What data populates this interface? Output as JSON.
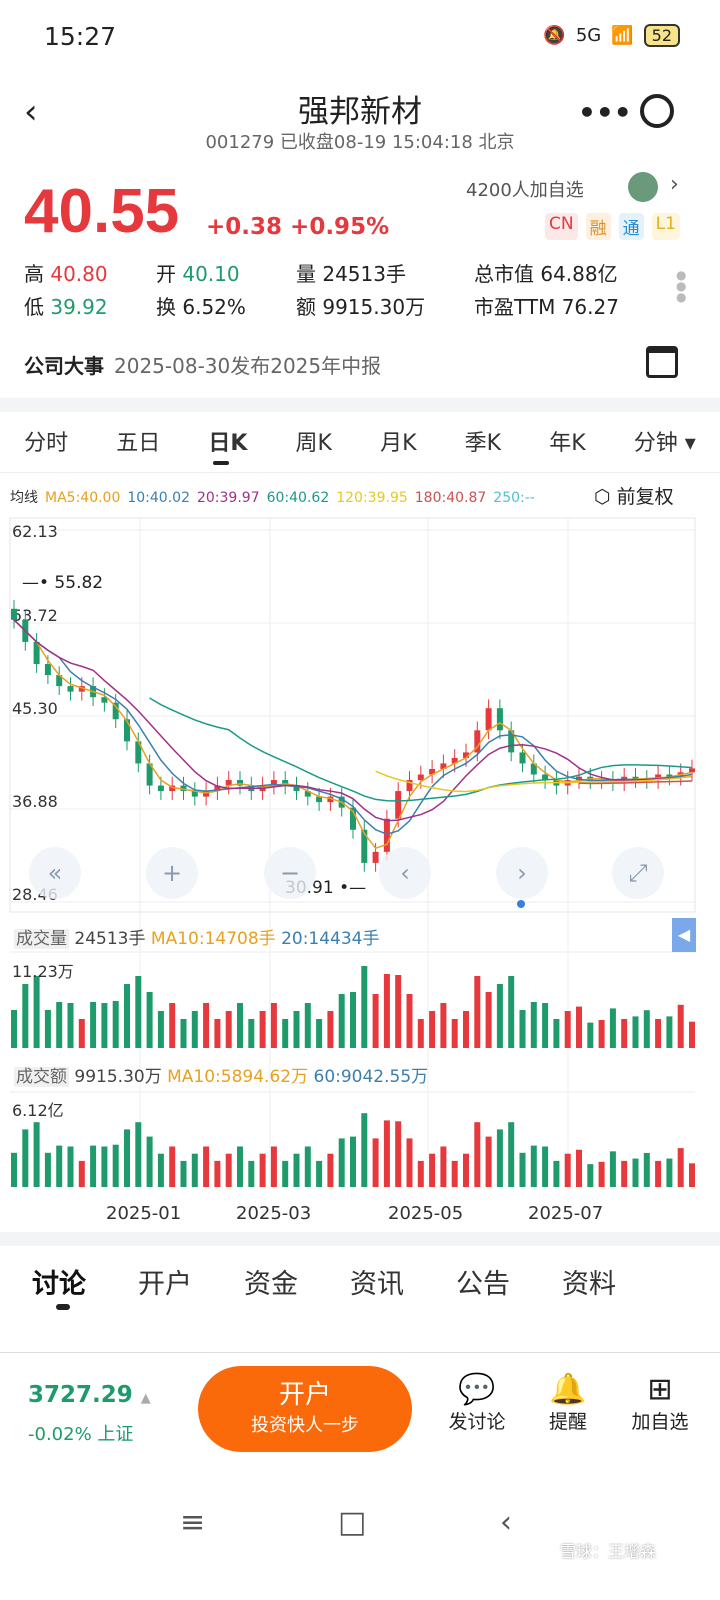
{
  "status": {
    "time": "15:27",
    "network": "5G",
    "battery": "52"
  },
  "header": {
    "title": "强邦新材",
    "subtitle": "001279 已收盘08-19 15:04:18 北京"
  },
  "quote": {
    "price": "40.55",
    "change": "+0.38",
    "change_pct": "+0.95%",
    "watchers": "4200人加自选",
    "badges": [
      "CN",
      "融",
      "通",
      "L1"
    ],
    "stats": [
      {
        "label": "高",
        "value": "40.80",
        "color": "red"
      },
      {
        "label": "开",
        "value": "40.10",
        "color": "green"
      },
      {
        "label": "量",
        "value": "24513手"
      },
      {
        "label": "总市值",
        "value": "64.88亿"
      },
      {
        "label": "低",
        "value": "39.92",
        "color": "green"
      },
      {
        "label": "换",
        "value": "6.52%"
      },
      {
        "label": "额",
        "value": "9915.30万"
      },
      {
        "label": "市盈TTM",
        "value": "76.27"
      }
    ]
  },
  "news": {
    "label": "公司大事",
    "text": "2025-08-30发布2025年中报"
  },
  "period_tabs": [
    "分时",
    "五日",
    "日K",
    "周K",
    "月K",
    "季K",
    "年K",
    "分钟 ▾"
  ],
  "active_period": "日K",
  "ma_legend": {
    "label": "均线",
    "items": [
      {
        "t": "MA5:40.00",
        "c": "#e8a020"
      },
      {
        "t": "10:40.02",
        "c": "#3a7fb0"
      },
      {
        "t": "20:39.97",
        "c": "#a0308a"
      },
      {
        "t": "60:40.62",
        "c": "#1a9a8a"
      },
      {
        "t": "120:39.95",
        "c": "#e8c820"
      },
      {
        "t": "180:40.87",
        "c": "#d05050"
      },
      {
        "t": "250:--",
        "c": "#50c0d0"
      }
    ],
    "adjust": "前复权"
  },
  "chart_data": {
    "type": "candlestick",
    "y_ticks": [
      "62.13",
      "53.72",
      "45.30",
      "36.88",
      "28.46"
    ],
    "ylim": [
      28.46,
      62.13
    ],
    "max_label": "55.82",
    "min_label": "30.91",
    "x_ticks": [
      "2025-01",
      "2025-03",
      "2025-05",
      "2025-07"
    ],
    "closes": [
      54,
      52,
      50,
      49,
      48,
      47.5,
      48,
      47,
      46.5,
      45,
      43,
      41,
      39,
      38.5,
      39,
      38.5,
      38,
      38.5,
      39,
      39.5,
      39,
      38.5,
      39,
      39.5,
      39,
      38.5,
      38,
      37.5,
      38,
      37,
      35,
      32,
      33,
      36,
      38.5,
      39.5,
      40,
      40.5,
      41,
      41.5,
      42,
      44,
      46,
      44,
      42,
      41,
      40,
      39.5,
      39,
      39.5,
      39.8,
      39.5,
      39.5,
      39.3,
      39.8,
      39.6,
      39.5,
      40,
      39.8,
      40.2,
      40.55
    ]
  },
  "volume": {
    "label": "成交量",
    "value": "24513手",
    "ma10": "MA10:14708手",
    "ma20": "20:14434手",
    "max": "11.23万"
  },
  "turnover": {
    "label": "成交额",
    "value": "9915.30万",
    "ma10": "MA10:5894.62万",
    "ma60": "60:9042.55万",
    "max": "6.12亿"
  },
  "bottom_tabs": [
    "讨论",
    "开户",
    "资金",
    "资讯",
    "公告",
    "资料"
  ],
  "index": {
    "value": "3727.29",
    "change": "-0.02% 上证"
  },
  "open_button": {
    "title": "开户",
    "subtitle": "投资快人一步"
  },
  "actions": [
    "发讨论",
    "提醒",
    "加自选"
  ],
  "watermark": "雪球：王增森"
}
